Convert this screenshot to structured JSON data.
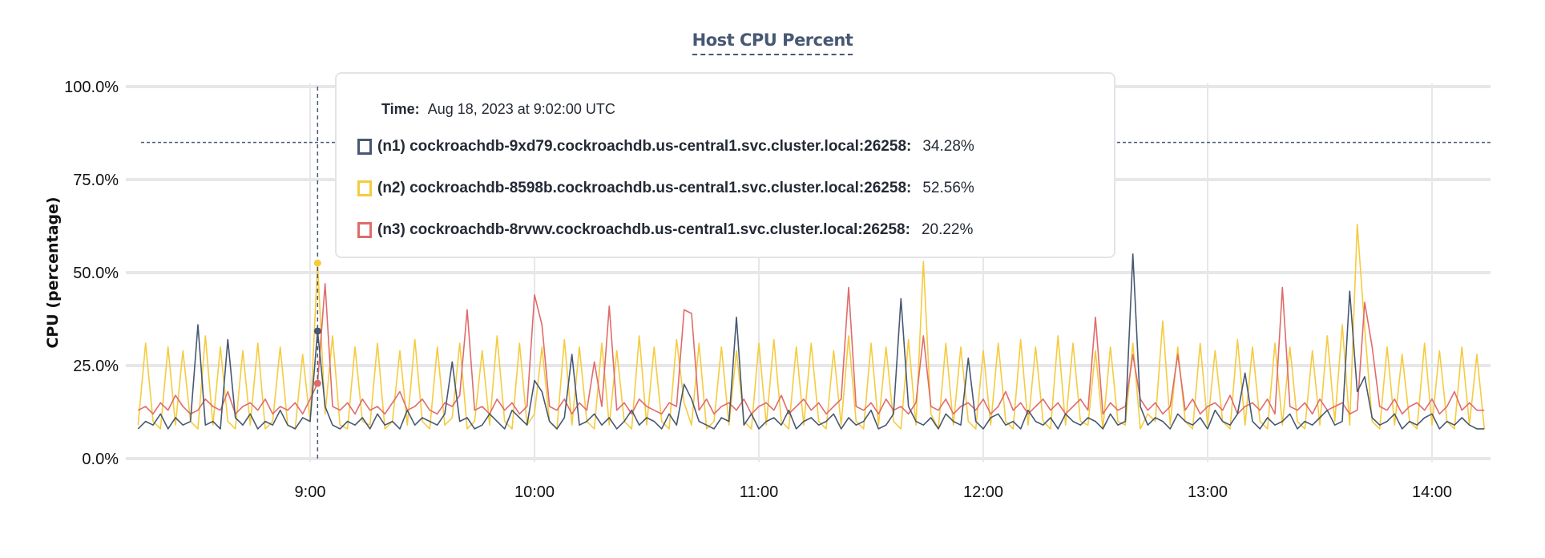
{
  "chart_data": {
    "type": "line",
    "title": "Host CPU Percent",
    "ylabel": "CPU (percentage)",
    "xlabel": "",
    "ylim": [
      0,
      100
    ],
    "yticks": [
      "0.0%",
      "25.0%",
      "50.0%",
      "75.0%",
      "100.0%"
    ],
    "ytick_values": [
      0,
      25,
      50,
      75,
      100
    ],
    "xticks": [
      "9:00",
      "10:00",
      "11:00",
      "12:00",
      "13:00",
      "14:00"
    ],
    "x_start": "08:14",
    "x_end": "14:14",
    "x_step_minutes": 2,
    "threshold_line": 85,
    "grid": true,
    "hover_time": "09:02",
    "series": [
      {
        "name": "(n1) cockroachdb-9xd79.cockroachdb.us-central1.svc.cluster.local:26258",
        "color": "#475872",
        "values": [
          8,
          10,
          9,
          12,
          8,
          11,
          9,
          10,
          36,
          9,
          10,
          8,
          32,
          11,
          9,
          12,
          8,
          10,
          9,
          13,
          9,
          8,
          11,
          10,
          34.28,
          14,
          9,
          8,
          10,
          9,
          11,
          8,
          12,
          9,
          10,
          8,
          13,
          9,
          11,
          10,
          9,
          12,
          26,
          10,
          11,
          8,
          9,
          12,
          10,
          8,
          13,
          11,
          9,
          21,
          18,
          10,
          8,
          11,
          28,
          9,
          10,
          12,
          9,
          11,
          8,
          10,
          13,
          9,
          11,
          10,
          8,
          12,
          9,
          20,
          16,
          10,
          9,
          8,
          11,
          10,
          38,
          9,
          12,
          8,
          10,
          11,
          9,
          13,
          8,
          10,
          11,
          9,
          10,
          12,
          8,
          11,
          9,
          10,
          13,
          8,
          9,
          12,
          43,
          14,
          10,
          9,
          11,
          8,
          12,
          10,
          9,
          27,
          10,
          8,
          11,
          12,
          9,
          10,
          8,
          13,
          10,
          9,
          11,
          8,
          12,
          10,
          9,
          11,
          10,
          8,
          12,
          9,
          10,
          55,
          14,
          9,
          11,
          10,
          8,
          12,
          10,
          9,
          11,
          8,
          13,
          10,
          9,
          12,
          23,
          10,
          8,
          11,
          9,
          10,
          12,
          8,
          10,
          9,
          11,
          13,
          9,
          10,
          45,
          18,
          22,
          11,
          9,
          10,
          12,
          8,
          10,
          9,
          11,
          12,
          8,
          10,
          9,
          11,
          9,
          8,
          8
        ]
      },
      {
        "name": "(n2) cockroachdb-8598b.cockroachdb.us-central1.svc.cluster.local:26258",
        "color": "#f5cb3f",
        "values": [
          9,
          31,
          10,
          8,
          30,
          9,
          29,
          10,
          8,
          33,
          9,
          30,
          10,
          8,
          29,
          9,
          31,
          8,
          10,
          30,
          9,
          8,
          28,
          10,
          52.56,
          12,
          33,
          9,
          8,
          30,
          10,
          9,
          31,
          8,
          10,
          29,
          9,
          32,
          10,
          8,
          30,
          9,
          11,
          31,
          8,
          10,
          29,
          9,
          33,
          10,
          8,
          31,
          9,
          12,
          30,
          10,
          8,
          32,
          9,
          30,
          10,
          8,
          31,
          9,
          29,
          10,
          8,
          33,
          9,
          30,
          10,
          8,
          32,
          15,
          9,
          31,
          8,
          10,
          30,
          9,
          29,
          10,
          8,
          31,
          9,
          32,
          10,
          8,
          30,
          9,
          31,
          10,
          8,
          29,
          9,
          33,
          10,
          8,
          31,
          9,
          30,
          10,
          8,
          32,
          9,
          53,
          12,
          8,
          31,
          9,
          30,
          10,
          8,
          29,
          9,
          31,
          10,
          8,
          32,
          9,
          30,
          10,
          8,
          33,
          9,
          31,
          10,
          9,
          29,
          8,
          30,
          10,
          9,
          31,
          8,
          12,
          10,
          37,
          9,
          30,
          10,
          8,
          31,
          9,
          29,
          10,
          8,
          32,
          9,
          30,
          10,
          8,
          31,
          9,
          30,
          10,
          8,
          29,
          9,
          33,
          10,
          36,
          9,
          63,
          35,
          10,
          8,
          30,
          9,
          28,
          10,
          8,
          31,
          9,
          29,
          10,
          8,
          30,
          9,
          28,
          8
        ]
      },
      {
        "name": "(n3) cockroachdb-8rvwv.cockroachdb.us-central1.svc.cluster.local:26258",
        "color": "#e06b6b",
        "values": [
          13,
          14,
          12,
          15,
          13,
          17,
          14,
          12,
          13,
          16,
          14,
          13,
          18,
          12,
          14,
          15,
          13,
          16,
          12,
          14,
          13,
          15,
          12,
          16,
          20.22,
          47,
          14,
          13,
          15,
          12,
          16,
          13,
          14,
          12,
          15,
          18,
          13,
          14,
          16,
          13,
          12,
          15,
          14,
          17,
          40,
          13,
          14,
          12,
          16,
          13,
          15,
          12,
          14,
          44,
          36,
          14,
          13,
          16,
          12,
          15,
          13,
          26,
          14,
          41,
          13,
          15,
          12,
          16,
          14,
          13,
          12,
          15,
          14,
          40,
          39,
          13,
          16,
          12,
          14,
          15,
          13,
          16,
          12,
          14,
          15,
          13,
          17,
          12,
          14,
          16,
          13,
          15,
          12,
          14,
          16,
          46,
          14,
          13,
          15,
          12,
          16,
          13,
          14,
          12,
          15,
          33,
          14,
          13,
          16,
          12,
          14,
          15,
          13,
          16,
          12,
          14,
          18,
          13,
          15,
          12,
          14,
          16,
          13,
          15,
          12,
          14,
          16,
          13,
          38,
          12,
          15,
          13,
          14,
          28,
          16,
          13,
          15,
          12,
          14,
          28,
          13,
          16,
          12,
          14,
          15,
          13,
          17,
          12,
          14,
          15,
          13,
          16,
          12,
          46,
          14,
          13,
          15,
          12,
          16,
          13,
          14,
          15,
          12,
          13,
          42,
          30,
          14,
          13,
          16,
          12,
          14,
          15,
          13,
          16,
          12,
          14,
          18,
          13,
          15,
          13,
          13
        ]
      }
    ]
  },
  "tooltip": {
    "time_label": "Time:",
    "time_value": "Aug 18, 2023 at 9:02:00 UTC",
    "rows": [
      {
        "name": "(n1) cockroachdb-9xd79.cockroachdb.us-central1.svc.cluster.local:26258:",
        "value": "34.28%",
        "color": "#475872"
      },
      {
        "name": "(n2) cockroachdb-8598b.cockroachdb.us-central1.svc.cluster.local:26258:",
        "value": "52.56%",
        "color": "#f5cb3f"
      },
      {
        "name": "(n3) cockroachdb-8rvwv.cockroachdb.us-central1.svc.cluster.local:26258:",
        "value": "20.22%",
        "color": "#e06b6b"
      }
    ]
  }
}
